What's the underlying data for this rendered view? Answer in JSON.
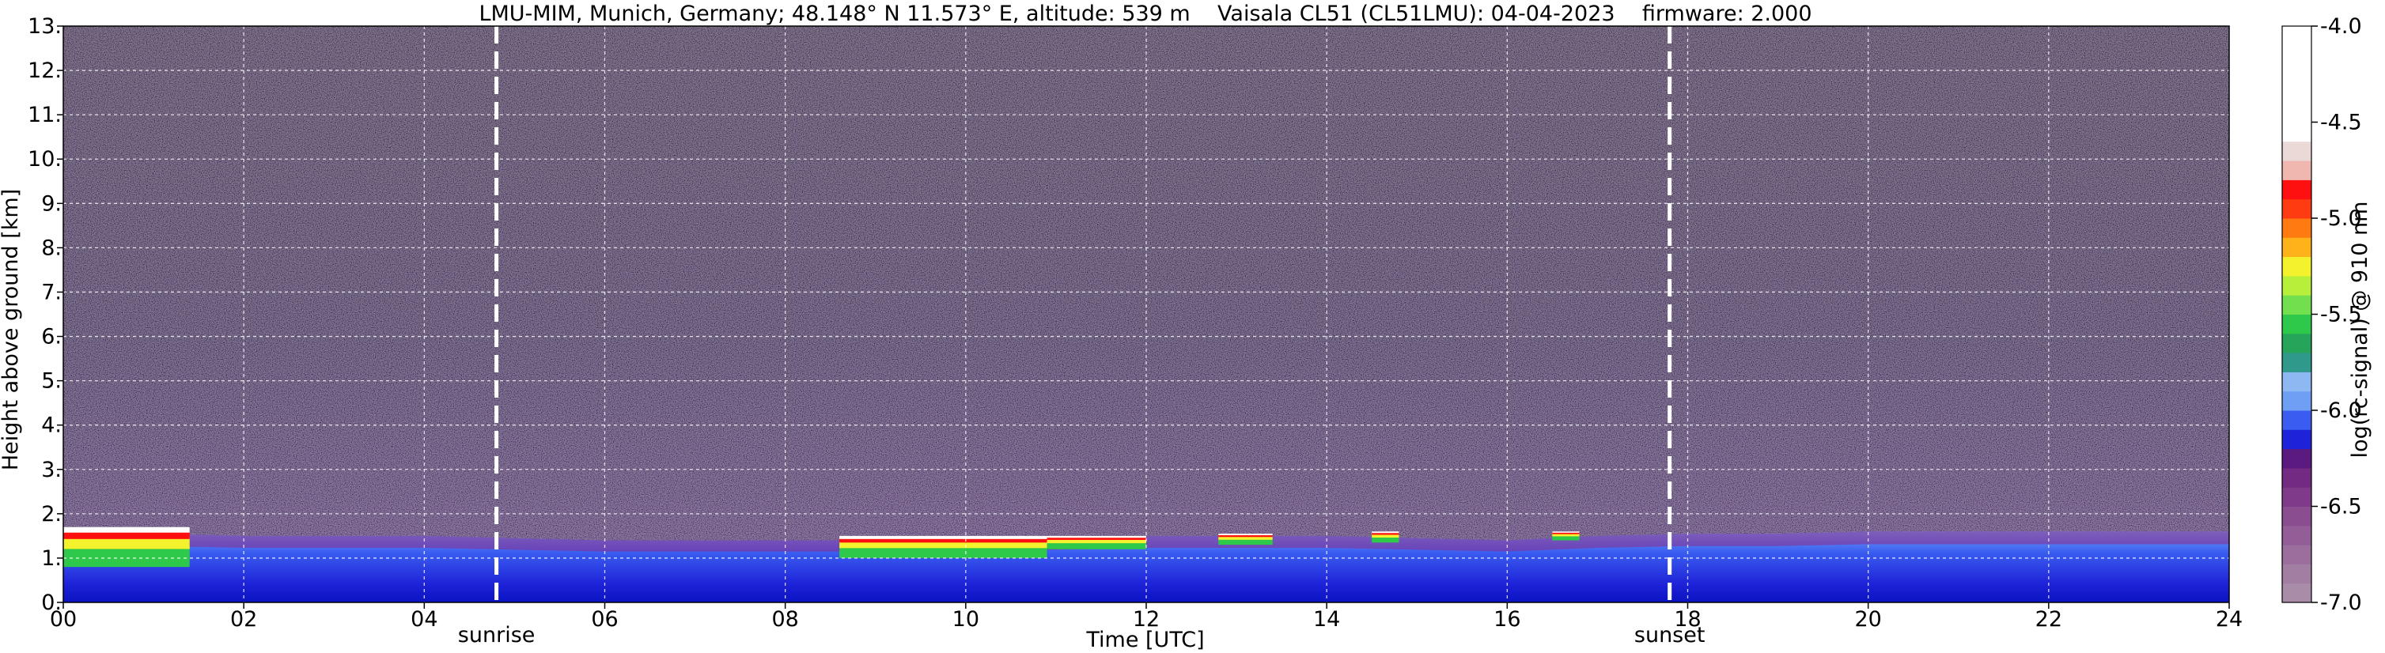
{
  "chart_data": {
    "type": "heatmap",
    "title": "LMU-MIM, Munich, Germany; 48.148° N 11.573° E, altitude: 539 m    Vaisala CL51 (CL51LMU): 04-04-2023    firmware: 2.000",
    "xlabel": "Time [UTC]",
    "ylabel": "Height above ground [km]",
    "colorbar_label": "log(rc-signal) @ 910 nm",
    "xlim": [
      0,
      24
    ],
    "ylim": [
      0,
      13
    ],
    "x_ticks": [
      {
        "value": 0,
        "label": "00"
      },
      {
        "value": 2,
        "label": "02"
      },
      {
        "value": 4,
        "label": "04"
      },
      {
        "value": 6,
        "label": "06"
      },
      {
        "value": 8,
        "label": "08"
      },
      {
        "value": 10,
        "label": "10"
      },
      {
        "value": 12,
        "label": "12"
      },
      {
        "value": 14,
        "label": "14"
      },
      {
        "value": 16,
        "label": "16"
      },
      {
        "value": 18,
        "label": "18"
      },
      {
        "value": 20,
        "label": "20"
      },
      {
        "value": 22,
        "label": "22"
      },
      {
        "value": 24,
        "label": "24"
      }
    ],
    "y_ticks": [
      {
        "value": 0,
        "label": "0."
      },
      {
        "value": 1,
        "label": "1."
      },
      {
        "value": 2,
        "label": "2."
      },
      {
        "value": 3,
        "label": "3."
      },
      {
        "value": 4,
        "label": "4."
      },
      {
        "value": 5,
        "label": "5."
      },
      {
        "value": 6,
        "label": "6."
      },
      {
        "value": 7,
        "label": "7."
      },
      {
        "value": 8,
        "label": "8."
      },
      {
        "value": 9,
        "label": "9."
      },
      {
        "value": 10,
        "label": "10."
      },
      {
        "value": 11,
        "label": "11."
      },
      {
        "value": 12,
        "label": "12."
      },
      {
        "value": 13,
        "label": "13."
      }
    ],
    "colorbar": {
      "range": [
        -7.0,
        -4.0
      ],
      "ticks": [
        {
          "value": -4.0,
          "label": "-4.0"
        },
        {
          "value": -4.5,
          "label": "-4.5"
        },
        {
          "value": -5.0,
          "label": "-5.0"
        },
        {
          "value": -5.5,
          "label": "-5.5"
        },
        {
          "value": -6.0,
          "label": "-6.0"
        },
        {
          "value": -6.5,
          "label": "-6.5"
        },
        {
          "value": -7.0,
          "label": "-7.0"
        }
      ],
      "levels": [
        {
          "from": -7.0,
          "to": -6.9,
          "color": "#a98da8"
        },
        {
          "from": -6.9,
          "to": -6.8,
          "color": "#a27ea3"
        },
        {
          "from": -6.8,
          "to": -6.7,
          "color": "#9b6e9d"
        },
        {
          "from": -6.7,
          "to": -6.6,
          "color": "#935e97"
        },
        {
          "from": -6.6,
          "to": -6.5,
          "color": "#8a4e90"
        },
        {
          "from": -6.5,
          "to": -6.4,
          "color": "#7f3b89"
        },
        {
          "from": -6.4,
          "to": -6.3,
          "color": "#732a83"
        },
        {
          "from": -6.3,
          "to": -6.2,
          "color": "#5a1a7f"
        },
        {
          "from": -6.2,
          "to": -6.1,
          "color": "#1e22d8"
        },
        {
          "from": -6.1,
          "to": -6.0,
          "color": "#3a5cf0"
        },
        {
          "from": -6.0,
          "to": -5.9,
          "color": "#6f9ff5"
        },
        {
          "from": -5.9,
          "to": -5.8,
          "color": "#8db8f2"
        },
        {
          "from": -5.8,
          "to": -5.7,
          "color": "#2f9a8c"
        },
        {
          "from": -5.7,
          "to": -5.6,
          "color": "#26a45a"
        },
        {
          "from": -5.6,
          "to": -5.5,
          "color": "#2ec84a"
        },
        {
          "from": -5.5,
          "to": -5.4,
          "color": "#72e04e"
        },
        {
          "from": -5.4,
          "to": -5.3,
          "color": "#b8ef3a"
        },
        {
          "from": -5.3,
          "to": -5.2,
          "color": "#f4f22c"
        },
        {
          "from": -5.2,
          "to": -5.1,
          "color": "#ffb21a"
        },
        {
          "from": -5.1,
          "to": -5.0,
          "color": "#ff7a10"
        },
        {
          "from": -5.0,
          "to": -4.9,
          "color": "#ff3b12"
        },
        {
          "from": -4.9,
          "to": -4.8,
          "color": "#ff1010"
        },
        {
          "from": -4.8,
          "to": -4.7,
          "color": "#f0b6b0"
        },
        {
          "from": -4.7,
          "to": -4.6,
          "color": "#ead9d6"
        },
        {
          "from": -4.6,
          "to": -4.0,
          "color": "#ffffff"
        }
      ]
    },
    "vertical_markers": [
      {
        "x": 4.8,
        "label": "sunrise"
      },
      {
        "x": 17.8,
        "label": "sunset"
      }
    ],
    "grid": true,
    "colors": {
      "background_noise": "#2c2a3a",
      "aerosol_layer": "#1f40e8",
      "surface_layer": "#0a1bd0",
      "cloud": "#ffffff"
    },
    "boundary_layer_top_km": {
      "x": [
        0,
        1,
        2,
        3,
        4,
        5,
        6,
        7,
        8,
        9,
        10,
        11,
        12,
        13,
        14,
        15,
        16,
        17,
        18,
        19,
        20,
        21,
        22,
        23,
        24
      ],
      "values": [
        1.55,
        1.55,
        1.5,
        1.5,
        1.5,
        1.45,
        1.4,
        1.4,
        1.4,
        1.4,
        1.4,
        1.45,
        1.5,
        1.5,
        1.5,
        1.45,
        1.4,
        1.5,
        1.55,
        1.55,
        1.6,
        1.6,
        1.6,
        1.6,
        1.6
      ]
    },
    "cloud_segments": [
      {
        "x0": 0.0,
        "x1": 1.4,
        "base_km": 0.8,
        "top_km": 1.7
      },
      {
        "x0": 8.6,
        "x1": 10.9,
        "base_km": 1.0,
        "top_km": 1.5
      },
      {
        "x0": 10.9,
        "x1": 12.0,
        "base_km": 1.2,
        "top_km": 1.5
      },
      {
        "x0": 12.8,
        "x1": 13.4,
        "base_km": 1.3,
        "top_km": 1.55
      },
      {
        "x0": 14.5,
        "x1": 14.8,
        "base_km": 1.35,
        "top_km": 1.6
      },
      {
        "x0": 16.5,
        "x1": 16.8,
        "base_km": 1.4,
        "top_km": 1.6
      }
    ]
  }
}
